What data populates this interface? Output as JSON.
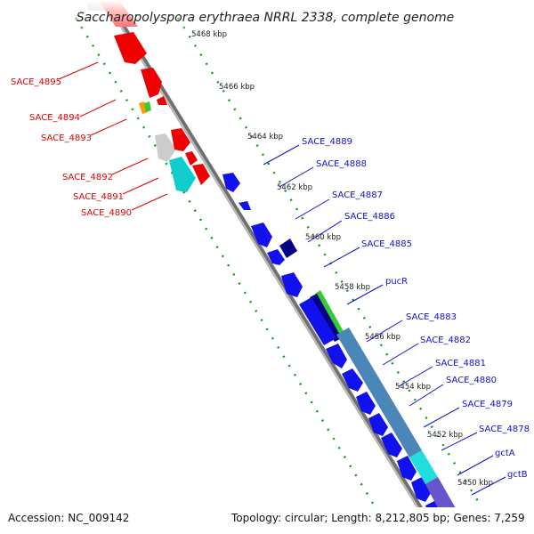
{
  "title": "Saccharopolyspora erythraea NRRL 2338, complete genome",
  "accession": "Accession: NC_009142",
  "topology": "Topology: circular; Length: 8,212,805 bp; Genes: 7,259",
  "kbp_ticks": [
    "5468 kbp",
    "5466 kbp",
    "5464 kbp",
    "5462 kbp",
    "5460 kbp",
    "5458 kbp",
    "5456 kbp",
    "5454 kbp",
    "5452 kbp",
    "5450 kbp"
  ],
  "genes_left": [
    "SACE_4895",
    "SACE_4894",
    "SACE_4893",
    "SACE_4892",
    "SACE_4891",
    "SACE_4890"
  ],
  "genes_right": [
    "SACE_4889",
    "SACE_4888",
    "SACE_4887",
    "SACE_4886",
    "SACE_4885",
    "pucR",
    "SACE_4883",
    "SACE_4882",
    "SACE_4881",
    "SACE_4880",
    "SACE_4879",
    "SACE_4878",
    "gctA",
    "gctB"
  ],
  "colors": {
    "reverse_strand": "#ff0000",
    "forward_strand": "#0000ff",
    "backbone": "#888888",
    "tick": "#119911"
  }
}
